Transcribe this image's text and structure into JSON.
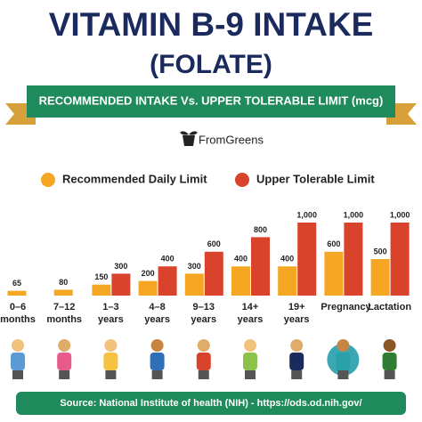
{
  "chart_data": {
    "type": "bar",
    "title": "VITAMIN B-9 INTAKE",
    "subtitle": "(FOLATE)",
    "banner": "RECOMMENDED INTAKE Vs. UPPER TOLERABLE LIMIT (mcg)",
    "brand": "FromGreens",
    "source": "Source: National Institute of health (NIH) - https://ods.od.nih.gov/",
    "categories": [
      "0–6 months",
      "7–12 months",
      "1–3 years",
      "4–8 years",
      "9–13 years",
      "14+ years",
      "19+ years",
      "Pregnancy",
      "Lactation"
    ],
    "series": [
      {
        "name": "Recommended Daily Limit",
        "color": "#f5a623",
        "values": [
          65,
          80,
          150,
          200,
          300,
          400,
          400,
          600,
          500
        ]
      },
      {
        "name": "Upper Tolerable Limit",
        "color": "#d9432b",
        "values": [
          null,
          null,
          300,
          400,
          600,
          800,
          1000,
          1000,
          1000
        ],
        "value_labels": [
          null,
          null,
          "300",
          "400",
          "600",
          "800",
          "1,000",
          "1,000",
          "1,000"
        ]
      }
    ]
  }
}
